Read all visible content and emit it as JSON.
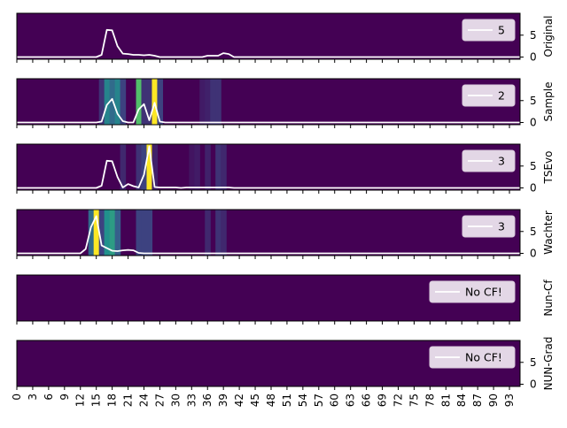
{
  "chart_data": [
    {
      "type": "heatmap",
      "ylabel": "Original",
      "legend": "5",
      "legend_position": "top-right",
      "yticks": [
        0,
        5
      ],
      "ylim": [
        -0.5,
        10
      ],
      "xlim": [
        0,
        95
      ],
      "line": [
        [
          0,
          0
        ],
        [
          15,
          0
        ],
        [
          16,
          0.5
        ],
        [
          17,
          6.2
        ],
        [
          18,
          6.1
        ],
        [
          19,
          2.5
        ],
        [
          20,
          0.8
        ],
        [
          21,
          0.7
        ],
        [
          22,
          0.5
        ],
        [
          23,
          0.5
        ],
        [
          24,
          0.4
        ],
        [
          25,
          0.5
        ],
        [
          26,
          0.3
        ],
        [
          27,
          0
        ],
        [
          30,
          0
        ],
        [
          35,
          0
        ],
        [
          36,
          0.3
        ],
        [
          38,
          0.3
        ],
        [
          39,
          0.9
        ],
        [
          40,
          0.7
        ],
        [
          41,
          0
        ],
        [
          95,
          0
        ]
      ],
      "heat": []
    },
    {
      "type": "heatmap",
      "ylabel": "Sample",
      "legend": "2",
      "legend_position": "top-right",
      "yticks": [
        0,
        5
      ],
      "ylim": [
        -0.5,
        10
      ],
      "xlim": [
        0,
        95
      ],
      "line": [
        [
          0,
          0
        ],
        [
          15,
          0
        ],
        [
          16,
          0.2
        ],
        [
          17,
          4
        ],
        [
          18,
          5.4
        ],
        [
          19,
          2
        ],
        [
          20,
          0.3
        ],
        [
          21,
          0
        ],
        [
          22,
          0
        ],
        [
          23,
          3
        ],
        [
          24,
          4.2
        ],
        [
          25,
          0.5
        ],
        [
          26,
          4.5
        ],
        [
          27,
          0.2
        ],
        [
          28,
          0
        ],
        [
          95,
          0
        ]
      ],
      "heat": [
        [
          16,
          0.15
        ],
        [
          17,
          0.45
        ],
        [
          18,
          0.35
        ],
        [
          19,
          0.45
        ],
        [
          20,
          0.2
        ],
        [
          23,
          0.7
        ],
        [
          24,
          0.15
        ],
        [
          25,
          0.15
        ],
        [
          26,
          1
        ],
        [
          27,
          0.2
        ],
        [
          35,
          0.08
        ],
        [
          36,
          0.1
        ],
        [
          37,
          0.15
        ],
        [
          38,
          0.15
        ]
      ]
    },
    {
      "type": "heatmap",
      "ylabel": "TSEvo",
      "legend": "3",
      "legend_position": "top-right",
      "yticks": [
        0,
        5
      ],
      "ylim": [
        -0.5,
        10
      ],
      "xlim": [
        0,
        95
      ],
      "line": [
        [
          0,
          0
        ],
        [
          15,
          0
        ],
        [
          16,
          0.5
        ],
        [
          17,
          6.2
        ],
        [
          18,
          6.1
        ],
        [
          19,
          2.5
        ],
        [
          20,
          0.1
        ],
        [
          21,
          0.9
        ],
        [
          22,
          0.4
        ],
        [
          23,
          0.1
        ],
        [
          24,
          3
        ],
        [
          25,
          9.5
        ],
        [
          26,
          0.2
        ],
        [
          27,
          0.1
        ],
        [
          30,
          0.1
        ],
        [
          31,
          0
        ],
        [
          32,
          0.1
        ],
        [
          40,
          0.1
        ],
        [
          41,
          0
        ],
        [
          95,
          0
        ]
      ],
      "heat": [
        [
          20,
          0.12
        ],
        [
          23,
          0.15
        ],
        [
          24,
          0.2
        ],
        [
          25,
          1
        ],
        [
          26,
          0.1
        ],
        [
          33,
          0.06
        ],
        [
          34,
          0.08
        ],
        [
          36,
          0.1
        ],
        [
          38,
          0.15
        ],
        [
          39,
          0.12
        ]
      ]
    },
    {
      "type": "heatmap",
      "ylabel": "Wachter",
      "legend": "3",
      "legend_position": "top-right",
      "yticks": [
        0,
        5
      ],
      "ylim": [
        -0.5,
        10
      ],
      "xlim": [
        0,
        95
      ],
      "line": [
        [
          0,
          0
        ],
        [
          12,
          0
        ],
        [
          13,
          1
        ],
        [
          14,
          6
        ],
        [
          15,
          8.5
        ],
        [
          16,
          1.8
        ],
        [
          17,
          1.2
        ],
        [
          18,
          0.6
        ],
        [
          19,
          0.5
        ],
        [
          20,
          0.7
        ],
        [
          21,
          0.8
        ],
        [
          22,
          0.7
        ],
        [
          23,
          0.1
        ],
        [
          24,
          0
        ],
        [
          95,
          0
        ]
      ],
      "heat": [
        [
          14,
          0.35
        ],
        [
          15,
          1
        ],
        [
          16,
          0.2
        ],
        [
          17,
          0.5
        ],
        [
          18,
          0.55
        ],
        [
          19,
          0.3
        ],
        [
          23,
          0.2
        ],
        [
          24,
          0.2
        ],
        [
          25,
          0.2
        ],
        [
          36,
          0.12
        ],
        [
          38,
          0.15
        ],
        [
          39,
          0.12
        ]
      ]
    },
    {
      "type": "heatmap",
      "ylabel": "Nun-Cf",
      "legend": "No CF!",
      "legend_position": "top-right",
      "yticks": [],
      "xlim": [
        0,
        95
      ],
      "line": [],
      "heat": []
    },
    {
      "type": "heatmap",
      "ylabel": "NUN-Grad",
      "legend": "No CF!",
      "legend_position": "top-right",
      "yticks": [
        0,
        5
      ],
      "ylim": [
        -0.5,
        10
      ],
      "xlim": [
        0,
        95
      ],
      "line": [],
      "heat": []
    }
  ],
  "x_ticks": [
    0,
    3,
    6,
    9,
    12,
    15,
    18,
    21,
    24,
    27,
    30,
    33,
    36,
    39,
    42,
    45,
    48,
    51,
    54,
    57,
    60,
    63,
    66,
    69,
    72,
    75,
    78,
    81,
    84,
    87,
    90,
    93
  ],
  "colors": {
    "background": "#440154",
    "line": "#ffffff",
    "legend_bg": "#e3d7e6"
  }
}
